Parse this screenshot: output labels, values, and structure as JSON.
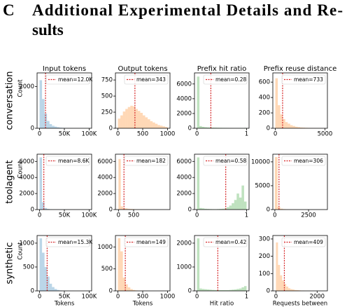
{
  "heading": {
    "number": "C",
    "lines": [
      "Additional Experimental Details and Re-",
      "sults"
    ]
  },
  "row_labels": [
    "conversation",
    "toolagent",
    "synthetic"
  ],
  "chart_data": [
    {
      "type": "histogram",
      "title": "Input tokens",
      "ylabel": "Count",
      "color": "#1f77b4",
      "bins": [
        0,
        5000,
        10000,
        15000,
        20000,
        25000,
        30000,
        35000,
        40000,
        45000,
        50000,
        55000,
        60000,
        65000,
        70000,
        75000,
        80000,
        85000,
        90000,
        95000,
        100000
      ],
      "counts": [
        2300,
        1400,
        700,
        350,
        200,
        120,
        80,
        50,
        30,
        20,
        15,
        10,
        8,
        5,
        4,
        3,
        2,
        2,
        1,
        1
      ],
      "xlim": [
        -5000,
        105000
      ],
      "ylim": [
        0,
        2650
      ],
      "xticks": [
        0,
        {
          "value": 50000,
          "label": "50K"
        },
        {
          "value": 100000,
          "label": "100K"
        }
      ],
      "yticks": [
        0,
        2000
      ],
      "mean": {
        "value": 12000,
        "label": "mean=12.0K",
        "color": "#d62728"
      },
      "legend": "upper right"
    },
    {
      "type": "histogram",
      "title": "Output tokens",
      "color": "#ff7f0e",
      "bins": [
        0,
        50,
        100,
        150,
        200,
        250,
        300,
        350,
        400,
        450,
        500,
        550,
        600,
        650,
        700,
        750,
        800,
        850,
        900,
        950,
        1000
      ],
      "counts": [
        150,
        200,
        260,
        300,
        330,
        350,
        340,
        300,
        270,
        240,
        200,
        170,
        140,
        110,
        90,
        70,
        50,
        40,
        30,
        20
      ],
      "xlim": [
        -50,
        1050
      ],
      "ylim": [
        0,
        860
      ],
      "xticks": [
        0,
        500,
        1000
      ],
      "yticks": [
        0,
        250,
        500,
        750
      ],
      "mean": {
        "value": 343,
        "label": "mean=343",
        "color": "#d62728"
      },
      "legend": "upper right"
    },
    {
      "type": "histogram",
      "title": "Prefix hit ratio",
      "color": "#2ca02c",
      "bins": [
        0,
        0.05,
        0.1,
        0.15,
        0.2,
        0.25,
        0.3,
        0.35,
        0.4,
        0.45,
        0.5,
        0.55,
        0.6,
        0.65,
        0.7,
        0.75,
        0.8,
        0.85,
        0.9,
        0.95,
        1
      ],
      "counts": [
        7000,
        300,
        200,
        150,
        120,
        100,
        90,
        80,
        70,
        60,
        55,
        50,
        45,
        40,
        35,
        30,
        25,
        20,
        15,
        60
      ],
      "xlim": [
        -0.05,
        1.05
      ],
      "ylim": [
        0,
        7500
      ],
      "xticks": [
        0,
        1
      ],
      "yticks": [
        0,
        2000,
        4000,
        6000
      ],
      "mean": {
        "value": 0.28,
        "label": "mean=0.28",
        "color": "#d62728"
      },
      "legend": "upper right"
    },
    {
      "type": "histogram",
      "title": "Prefix reuse distance",
      "color": "#ff7f0e",
      "bins": [
        0,
        250,
        500,
        750,
        1000,
        1250,
        1500,
        1750,
        2000,
        2250,
        2500,
        2750,
        3000,
        3250,
        3500,
        3750,
        4000,
        4250,
        4500,
        4750,
        5000
      ],
      "counts": [
        650,
        300,
        180,
        120,
        80,
        60,
        40,
        30,
        20,
        15,
        10,
        8,
        6,
        5,
        4,
        3,
        2,
        2,
        1,
        1
      ],
      "xlim": [
        -250,
        5250
      ],
      "ylim": [
        0,
        720
      ],
      "xticks": [
        0,
        5000
      ],
      "yticks": [
        0,
        200,
        400,
        600
      ],
      "mean": {
        "value": 733,
        "label": "mean=733",
        "color": "#d62728"
      },
      "legend": "upper right"
    },
    {
      "type": "histogram",
      "ylabel": "Count",
      "color": "#1f77b4",
      "bins": [
        0,
        5000,
        10000,
        15000,
        20000,
        25000,
        30000,
        35000,
        40000,
        45000,
        50000,
        55000,
        60000,
        65000,
        70000,
        75000,
        80000,
        85000,
        90000,
        95000,
        100000
      ],
      "counts": [
        6500,
        900,
        200,
        80,
        40,
        20,
        10,
        5,
        3,
        2,
        1,
        1,
        0,
        0,
        0,
        0,
        0,
        0,
        0,
        0
      ],
      "xlim": [
        -5000,
        105000
      ],
      "ylim": [
        0,
        6900
      ],
      "xticks": [
        0,
        {
          "value": 50000,
          "label": "50K"
        },
        {
          "value": 100000,
          "label": "100K"
        }
      ],
      "yticks": [
        0,
        2000,
        4000,
        6000
      ],
      "mean": {
        "value": 8600,
        "label": "mean=8.6K",
        "color": "#d62728"
      },
      "legend": "upper right"
    },
    {
      "type": "histogram",
      "color": "#ff7f0e",
      "bins": [
        0,
        75,
        150,
        225,
        300,
        375,
        450,
        525,
        600,
        675,
        750,
        825,
        900,
        975,
        1050,
        1125,
        1200,
        1275,
        1350,
        1425,
        1500
      ],
      "counts": [
        6300,
        400,
        200,
        150,
        100,
        80,
        60,
        40,
        30,
        20,
        15,
        10,
        5,
        3,
        2,
        1,
        1,
        0,
        0,
        0
      ],
      "xlim": [
        -100,
        1700
      ],
      "ylim": [
        0,
        6900
      ],
      "xticks": [
        0,
        500
      ],
      "yticks": [
        0,
        2000,
        4000,
        6000
      ],
      "mean": {
        "value": 182,
        "label": "mean=182",
        "color": "#d62728"
      },
      "legend": "upper right"
    },
    {
      "type": "histogram",
      "color": "#2ca02c",
      "bins": [
        0,
        0.05,
        0.1,
        0.15,
        0.2,
        0.25,
        0.3,
        0.35,
        0.4,
        0.45,
        0.5,
        0.55,
        0.6,
        0.65,
        0.7,
        0.75,
        0.8,
        0.85,
        0.9,
        0.95,
        1
      ],
      "counts": [
        6500,
        200,
        150,
        100,
        80,
        60,
        50,
        40,
        60,
        80,
        100,
        150,
        300,
        500,
        800,
        1200,
        2000,
        1500,
        3000,
        1000
      ],
      "xlim": [
        -0.05,
        1.05
      ],
      "ylim": [
        0,
        6900
      ],
      "xticks": [
        0,
        1
      ],
      "yticks": [
        0,
        2000,
        4000,
        6000
      ],
      "mean": {
        "value": 0.58,
        "label": "mean=0.58",
        "color": "#d62728"
      },
      "legend": "upper right"
    },
    {
      "type": "histogram",
      "color": "#ff7f0e",
      "bins": [
        0,
        200,
        400,
        600,
        800,
        1000,
        1200,
        1400,
        1600,
        1800,
        2000,
        2200,
        2400,
        2600,
        2800,
        3000,
        3200,
        3400,
        3600,
        3800,
        4000
      ],
      "counts": [
        11000,
        600,
        200,
        100,
        50,
        30,
        20,
        10,
        5,
        3,
        2,
        1,
        1,
        0,
        0,
        0,
        0,
        0,
        0,
        0
      ],
      "xlim": [
        -150,
        3900
      ],
      "ylim": [
        0,
        11600
      ],
      "xticks": [
        0,
        2500
      ],
      "yticks": [
        0,
        5000,
        10000
      ],
      "mean": {
        "value": 306,
        "label": "mean=306",
        "color": "#d62728"
      },
      "legend": "upper right"
    },
    {
      "type": "histogram",
      "ylabel": "Count",
      "xlabel": "Tokens",
      "color": "#1f77b4",
      "bins": [
        0,
        5000,
        10000,
        15000,
        20000,
        25000,
        30000,
        35000,
        40000,
        45000,
        50000,
        55000,
        60000,
        65000,
        70000,
        75000,
        80000,
        85000,
        90000,
        95000,
        100000
      ],
      "counts": [
        1100,
        800,
        500,
        300,
        150,
        80,
        40,
        20,
        10,
        5,
        3,
        2,
        1,
        1,
        0,
        0,
        0,
        0,
        0,
        0
      ],
      "xlim": [
        -5000,
        105000
      ],
      "ylim": [
        0,
        1160
      ],
      "xticks": [
        0,
        {
          "value": 50000,
          "label": "50K"
        },
        {
          "value": 100000,
          "label": "100K"
        }
      ],
      "yticks": [
        0,
        500,
        1000
      ],
      "mean": {
        "value": 15300,
        "label": "mean=15.3K",
        "color": "#d62728"
      },
      "legend": "upper right"
    },
    {
      "type": "histogram",
      "xlabel": "Tokens",
      "color": "#ff7f0e",
      "bins": [
        0,
        50,
        100,
        150,
        200,
        250,
        300,
        350,
        400,
        450,
        500,
        550,
        600,
        650,
        700,
        750,
        800,
        850,
        900,
        950,
        1000
      ],
      "counts": [
        1200,
        900,
        300,
        150,
        80,
        40,
        20,
        10,
        5,
        3,
        2,
        1,
        0,
        0,
        0,
        0,
        0,
        0,
        0,
        0
      ],
      "xlim": [
        -50,
        1050
      ],
      "ylim": [
        0,
        1260
      ],
      "xticks": [
        0,
        500,
        1000
      ],
      "yticks": [
        0,
        500,
        1000
      ],
      "mean": {
        "value": 149,
        "label": "mean=149",
        "color": "#d62728"
      },
      "legend": "upper right"
    },
    {
      "type": "histogram",
      "xlabel": "Hit ratio",
      "color": "#2ca02c",
      "bins": [
        0,
        0.05,
        0.1,
        0.15,
        0.2,
        0.25,
        0.3,
        0.35,
        0.4,
        0.45,
        0.5,
        0.55,
        0.6,
        0.65,
        0.7,
        0.75,
        0.8,
        0.85,
        0.9,
        0.95,
        1
      ],
      "counts": [
        2200,
        100,
        80,
        70,
        60,
        50,
        40,
        35,
        30,
        30,
        30,
        30,
        30,
        40,
        50,
        60,
        80,
        100,
        150,
        200
      ],
      "xlim": [
        -0.05,
        1.05
      ],
      "ylim": [
        0,
        2320
      ],
      "xticks": [
        0,
        1
      ],
      "yticks": [
        0,
        1000,
        2000
      ],
      "mean": {
        "value": 0.42,
        "label": "mean=0.42",
        "color": "#d62728"
      },
      "legend": "upper right"
    },
    {
      "type": "histogram",
      "xlabel": "Requests between",
      "color": "#ff7f0e",
      "bins": [
        0,
        100,
        200,
        300,
        400,
        500,
        600,
        700,
        800,
        900,
        1000,
        1100,
        1200,
        1300,
        1400,
        1500,
        1600,
        1700,
        1800,
        1900,
        2000
      ],
      "counts": [
        280,
        150,
        90,
        60,
        40,
        25,
        15,
        10,
        8,
        5,
        4,
        3,
        2,
        2,
        1,
        1,
        1,
        0,
        0,
        0
      ],
      "xlim": [
        -150,
        2500
      ],
      "ylim": [
        0,
        320
      ],
      "xticks": [
        0,
        2000
      ],
      "yticks": [
        0,
        100,
        200,
        300
      ],
      "mean": {
        "value": 409,
        "label": "mean=409",
        "color": "#d62728"
      },
      "legend": "upper right"
    }
  ]
}
